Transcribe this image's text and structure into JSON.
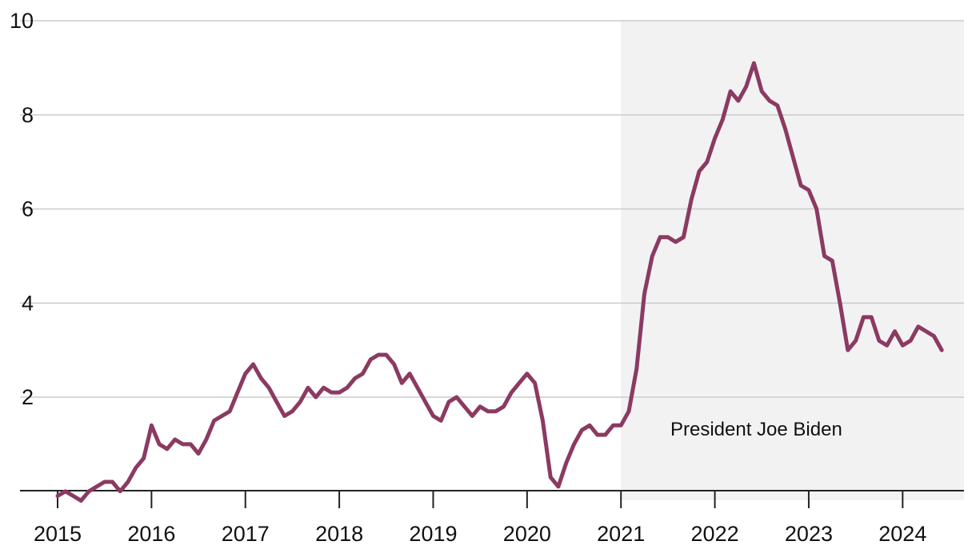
{
  "chart_data": {
    "type": "line",
    "title": "",
    "xlabel": "",
    "ylabel": "",
    "xlim": [
      2015.0,
      2024.5
    ],
    "ylim": [
      -0.2,
      10
    ],
    "y_ticks": [
      2,
      4,
      6,
      8,
      10
    ],
    "x_ticks": [
      2015,
      2016,
      2017,
      2018,
      2019,
      2020,
      2021,
      2022,
      2023,
      2024
    ],
    "grid": "horizontal",
    "shaded_region": {
      "start": 2021.0,
      "end": 2024.5,
      "label": "President Joe Biden",
      "color": "#f2f2f2"
    },
    "series": [
      {
        "color": "#8b3a62",
        "x_start": 2015.0,
        "step": 0.08333,
        "values": [
          -0.1,
          0.0,
          -0.1,
          -0.2,
          0.0,
          0.1,
          0.2,
          0.2,
          0.0,
          0.2,
          0.5,
          0.7,
          1.4,
          1.0,
          0.9,
          1.1,
          1.0,
          1.0,
          0.8,
          1.1,
          1.5,
          1.6,
          1.7,
          2.1,
          2.5,
          2.7,
          2.4,
          2.2,
          1.9,
          1.6,
          1.7,
          1.9,
          2.2,
          2.0,
          2.2,
          2.1,
          2.1,
          2.2,
          2.4,
          2.5,
          2.8,
          2.9,
          2.9,
          2.7,
          2.3,
          2.5,
          2.2,
          1.9,
          1.6,
          1.5,
          1.9,
          2.0,
          1.8,
          1.6,
          1.8,
          1.7,
          1.7,
          1.8,
          2.1,
          2.3,
          2.5,
          2.3,
          1.5,
          0.3,
          0.1,
          0.6,
          1.0,
          1.3,
          1.4,
          1.2,
          1.2,
          1.4,
          1.4,
          1.7,
          2.6,
          4.2,
          5.0,
          5.4,
          5.4,
          5.3,
          5.4,
          6.2,
          6.8,
          7.0,
          7.5,
          7.9,
          8.5,
          8.3,
          8.6,
          9.1,
          8.5,
          8.3,
          8.2,
          7.7,
          7.1,
          6.5,
          6.4,
          6.0,
          5.0,
          4.9,
          4.0,
          3.0,
          3.2,
          3.7,
          3.7,
          3.2,
          3.1,
          3.4,
          3.1,
          3.2,
          3.5,
          3.4,
          3.3,
          3.0
        ]
      }
    ]
  },
  "colors": {
    "line": "#8b3a62",
    "shade": "#f2f2f2",
    "grid": "#cccccc",
    "axis": "#222222"
  }
}
